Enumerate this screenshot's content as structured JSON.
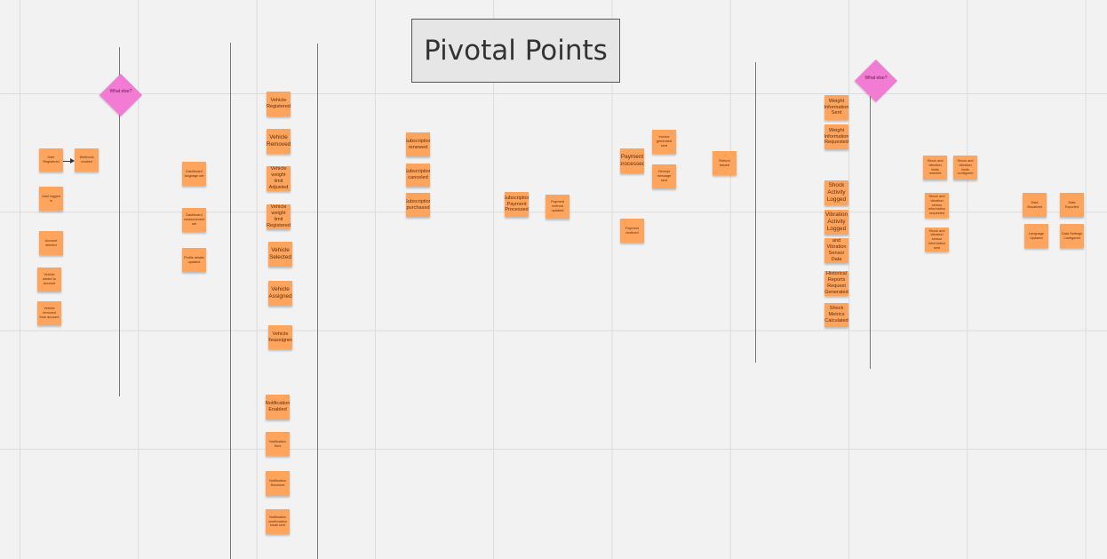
{
  "board": {
    "title": "Pivotal Points"
  },
  "diamonds": [
    {
      "id": "d1",
      "label": "What else?"
    },
    {
      "id": "d2",
      "label": "What else?"
    }
  ],
  "stickies": [
    {
      "id": "s1",
      "text": "User Registered",
      "size": "small"
    },
    {
      "id": "s2",
      "text": "Webhook created",
      "size": "small"
    },
    {
      "id": "s3",
      "text": "User logged in",
      "size": "small"
    },
    {
      "id": "s4",
      "text": "Account deleted",
      "size": "small"
    },
    {
      "id": "s5",
      "text": "Vehicle added to account",
      "size": "small"
    },
    {
      "id": "s6",
      "text": "Vehicle removed from account",
      "size": "small"
    },
    {
      "id": "s7",
      "text": "Dashboard language set",
      "size": "small"
    },
    {
      "id": "s8",
      "text": "Dashboard measurement set",
      "size": "small"
    },
    {
      "id": "s9",
      "text": "Profile details updated",
      "size": "small"
    },
    {
      "id": "s10",
      "text": "Vehicle Registered",
      "size": "big"
    },
    {
      "id": "s11",
      "text": "Vehicle Removed",
      "size": "huge"
    },
    {
      "id": "s12",
      "text": "Vehicle weight limit Adjusted",
      "size": "big"
    },
    {
      "id": "s13",
      "text": "Vehicle weight limit Registered",
      "size": "big"
    },
    {
      "id": "s14",
      "text": "Vehicle Selected",
      "size": "huge"
    },
    {
      "id": "s15",
      "text": "Vehicle Assigned",
      "size": "huge"
    },
    {
      "id": "s16",
      "text": "Vehicle Reassigned",
      "size": "big"
    },
    {
      "id": "s17",
      "text": "Notification Enabled",
      "size": "big"
    },
    {
      "id": "s18",
      "text": "Notification Sent",
      "size": "small"
    },
    {
      "id": "s19",
      "text": "Notification Received",
      "size": "small"
    },
    {
      "id": "s20",
      "text": "Notification confirmation email sent",
      "size": "small"
    },
    {
      "id": "s21",
      "text": "Subscription renewed",
      "size": "big"
    },
    {
      "id": "s22",
      "text": "Subscription canceled",
      "size": "big"
    },
    {
      "id": "s23",
      "text": "Subscription purchased",
      "size": "big"
    },
    {
      "id": "s24",
      "text": "Subscription Payment Processed",
      "size": "big"
    },
    {
      "id": "s25",
      "text": "Payment method updated",
      "size": "small"
    },
    {
      "id": "s26",
      "text": "Payment processed",
      "size": "huge"
    },
    {
      "id": "s27",
      "text": "Invoice generated sent",
      "size": "small"
    },
    {
      "id": "s28",
      "text": "Receipt message sent",
      "size": "small"
    },
    {
      "id": "s29",
      "text": "Payment declined",
      "size": "small"
    },
    {
      "id": "s30",
      "text": "Refund issued",
      "size": "small"
    },
    {
      "id": "s31",
      "text": "Weight Information Sent",
      "size": "big"
    },
    {
      "id": "s32",
      "text": "Weight Information Requested",
      "size": "big"
    },
    {
      "id": "s33",
      "text": "Shock Activity Logged",
      "size": "huge"
    },
    {
      "id": "s34",
      "text": "Vibration Activity Logged",
      "size": "huge"
    },
    {
      "id": "s35",
      "text": "Shock and Vibration Sensor Data Analyzed",
      "size": "big"
    },
    {
      "id": "s36",
      "text": "Historical Reports Request Generated",
      "size": "big"
    },
    {
      "id": "s37",
      "text": "Shock Metrics Calculated",
      "size": "big"
    },
    {
      "id": "s38",
      "text": "Shock and vibration limits reached",
      "size": "small"
    },
    {
      "id": "s39",
      "text": "Shock and vibration limits configured",
      "size": "small"
    },
    {
      "id": "s40",
      "text": "Shock and vibration sensor information requested",
      "size": "small"
    },
    {
      "id": "s41",
      "text": "Shock and vibration sensor information sent",
      "size": "small"
    },
    {
      "id": "s42",
      "text": "Data Visualized",
      "size": "small"
    },
    {
      "id": "s43",
      "text": "Data Exported",
      "size": "small"
    },
    {
      "id": "s44",
      "text": "Language Updated",
      "size": "small"
    },
    {
      "id": "s45",
      "text": "Data Settings Configured",
      "size": "small"
    }
  ]
}
